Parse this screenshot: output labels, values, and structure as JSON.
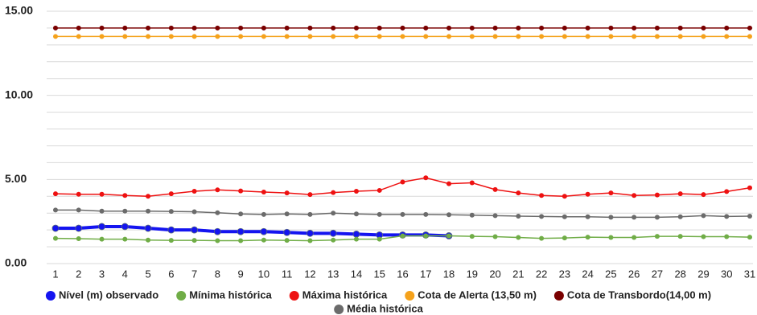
{
  "chart_data": {
    "type": "line",
    "categories": [
      "1",
      "2",
      "3",
      "4",
      "5",
      "6",
      "7",
      "8",
      "9",
      "10",
      "11",
      "12",
      "13",
      "14",
      "15",
      "16",
      "17",
      "18",
      "19",
      "20",
      "21",
      "22",
      "23",
      "24",
      "25",
      "26",
      "27",
      "28",
      "29",
      "30",
      "31"
    ],
    "ylim": [
      0,
      15
    ],
    "yticks": [
      {
        "value": 0,
        "label": "0.00"
      },
      {
        "value": 5,
        "label": "5.00"
      },
      {
        "value": 10,
        "label": "10.00"
      },
      {
        "value": 15,
        "label": "15.00"
      }
    ],
    "y_gridlines": [
      0,
      1,
      2,
      3,
      4,
      5,
      6,
      7,
      8,
      9,
      10,
      11,
      12,
      13,
      14,
      15
    ],
    "grid": true,
    "legend": "bottom",
    "series": [
      {
        "name": "Nível (m) observado",
        "color": "#1414f0",
        "values": [
          2.1,
          2.1,
          2.2,
          2.2,
          2.1,
          2.0,
          2.0,
          1.9,
          1.9,
          1.9,
          1.85,
          1.8,
          1.8,
          1.75,
          1.7,
          1.7,
          1.7,
          1.65,
          null,
          null,
          null,
          null,
          null,
          null,
          null,
          null,
          null,
          null,
          null,
          null,
          null
        ]
      },
      {
        "name": "Mínima histórica",
        "color": "#70ad47",
        "values": [
          1.5,
          1.48,
          1.45,
          1.45,
          1.4,
          1.38,
          1.38,
          1.36,
          1.36,
          1.4,
          1.38,
          1.36,
          1.4,
          1.45,
          1.45,
          1.65,
          1.65,
          1.65,
          1.62,
          1.6,
          1.55,
          1.5,
          1.52,
          1.57,
          1.55,
          1.55,
          1.62,
          1.62,
          1.6,
          1.6,
          1.57
        ]
      },
      {
        "name": "Máxima histórica",
        "color": "#ee1111",
        "values": [
          4.15,
          4.12,
          4.12,
          4.05,
          4.0,
          4.15,
          4.3,
          4.38,
          4.32,
          4.25,
          4.2,
          4.1,
          4.22,
          4.3,
          4.35,
          4.85,
          5.1,
          4.75,
          4.8,
          4.4,
          4.2,
          4.05,
          4.0,
          4.12,
          4.2,
          4.05,
          4.08,
          4.15,
          4.1,
          4.28,
          4.5
        ]
      },
      {
        "name": "Cota de Alerta (13,50 m)",
        "color": "#f5a21c",
        "values": [
          13.5,
          13.5,
          13.5,
          13.5,
          13.5,
          13.5,
          13.5,
          13.5,
          13.5,
          13.5,
          13.5,
          13.5,
          13.5,
          13.5,
          13.5,
          13.5,
          13.5,
          13.5,
          13.5,
          13.5,
          13.5,
          13.5,
          13.5,
          13.5,
          13.5,
          13.5,
          13.5,
          13.5,
          13.5,
          13.5,
          13.5
        ]
      },
      {
        "name": "Cota de Transbordo(14,00 m)",
        "color": "#7a0000",
        "values": [
          14,
          14,
          14,
          14,
          14,
          14,
          14,
          14,
          14,
          14,
          14,
          14,
          14,
          14,
          14,
          14,
          14,
          14,
          14,
          14,
          14,
          14,
          14,
          14,
          14,
          14,
          14,
          14,
          14,
          14,
          14
        ]
      },
      {
        "name": "Média histórica",
        "color": "#6b6b6b",
        "values": [
          3.18,
          3.18,
          3.12,
          3.12,
          3.12,
          3.1,
          3.08,
          3.02,
          2.95,
          2.92,
          2.95,
          2.92,
          3.0,
          2.95,
          2.92,
          2.92,
          2.92,
          2.9,
          2.88,
          2.85,
          2.82,
          2.8,
          2.78,
          2.78,
          2.75,
          2.75,
          2.75,
          2.78,
          2.85,
          2.8,
          2.82
        ]
      }
    ]
  }
}
